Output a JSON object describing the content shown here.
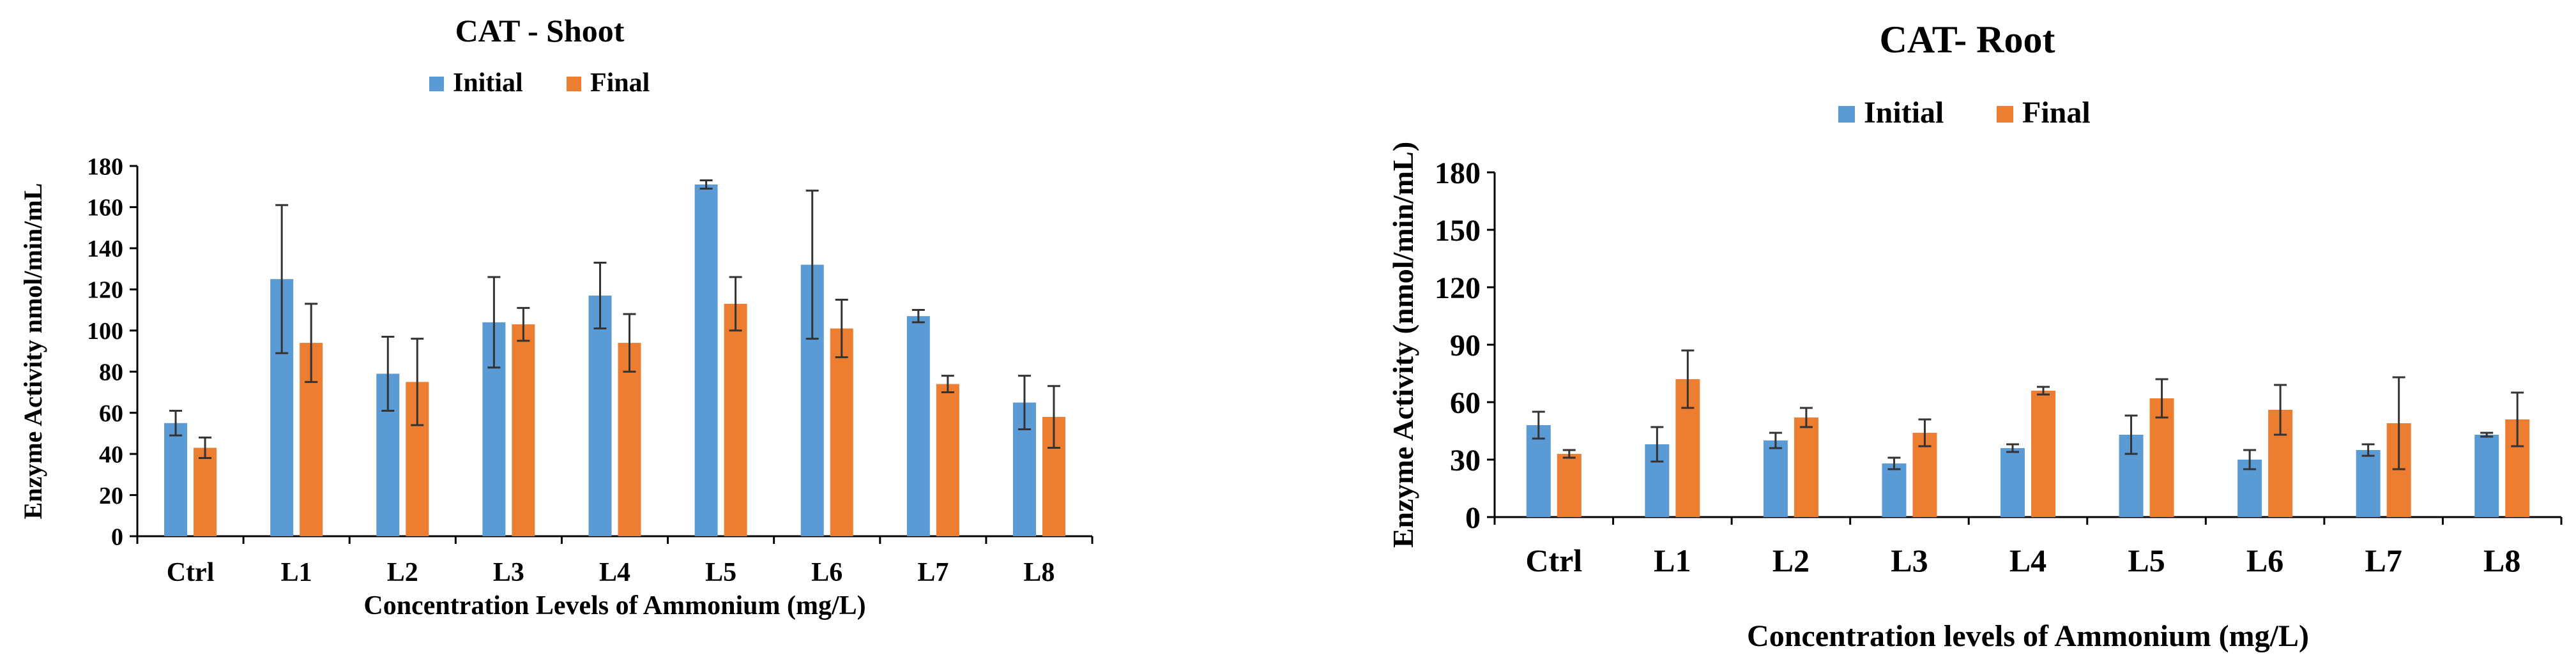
{
  "chart_data": [
    {
      "type": "bar",
      "title": "CAT - Shoot",
      "xlabel": "Concentration Levels of Ammonium (mg/L)",
      "ylabel": "Enzyme Activity  nmol/min/mL",
      "categories": [
        "Ctrl",
        "L1",
        "L2",
        "L3",
        "L4",
        "L5",
        "L6",
        "L7",
        "L8"
      ],
      "ylim": [
        0,
        180
      ],
      "yticks": [
        0,
        20,
        40,
        60,
        80,
        100,
        120,
        140,
        160,
        180
      ],
      "legend_position": "top",
      "grid": false,
      "series": [
        {
          "name": "Initial",
          "color": "#5b9bd5",
          "values": [
            55,
            125,
            79,
            104,
            117,
            171,
            132,
            107,
            65
          ],
          "errors": [
            6,
            36,
            18,
            22,
            16,
            2,
            36,
            3,
            13
          ]
        },
        {
          "name": "Final",
          "color": "#ed7d31",
          "values": [
            43,
            94,
            75,
            103,
            94,
            113,
            101,
            74,
            58
          ],
          "errors": [
            5,
            19,
            21,
            8,
            14,
            13,
            14,
            4,
            15
          ]
        }
      ]
    },
    {
      "type": "bar",
      "title": "CAT- Root",
      "xlabel": "Concentration levels of Ammonium (mg/L)",
      "ylabel": "Enzyme  Activity  (nmol/min/mL)",
      "categories": [
        "Ctrl",
        "L1",
        "L2",
        "L3",
        "L4",
        "L5",
        "L6",
        "L7",
        "L8"
      ],
      "ylim": [
        0,
        180
      ],
      "yticks": [
        0,
        30,
        60,
        90,
        120,
        150,
        180
      ],
      "legend_position": "top",
      "grid": false,
      "series": [
        {
          "name": "Initial",
          "color": "#5b9bd5",
          "values": [
            48,
            38,
            40,
            28,
            36,
            43,
            30,
            35,
            43
          ],
          "errors": [
            7,
            9,
            4,
            3,
            2,
            10,
            5,
            3,
            1
          ]
        },
        {
          "name": "Final",
          "color": "#ed7d31",
          "values": [
            33,
            72,
            52,
            44,
            66,
            62,
            56,
            49,
            51
          ],
          "errors": [
            2,
            15,
            5,
            7,
            2,
            10,
            13,
            24,
            14
          ]
        }
      ]
    }
  ]
}
